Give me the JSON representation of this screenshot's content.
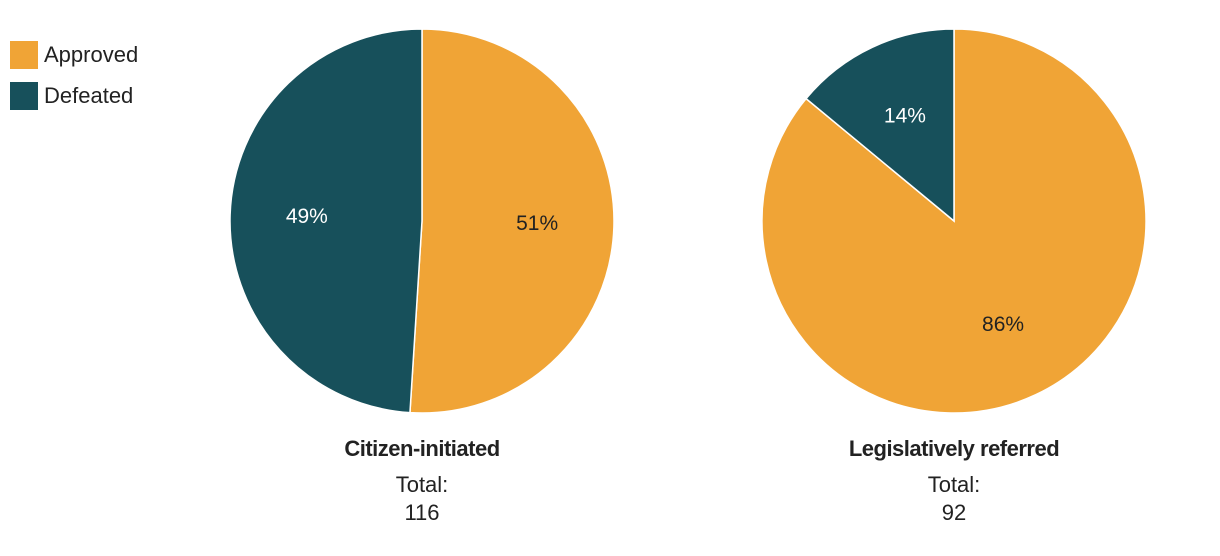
{
  "legend": {
    "items": [
      {
        "label": "Approved",
        "color": "#f0a436"
      },
      {
        "label": "Defeated",
        "color": "#17505b"
      }
    ]
  },
  "chart_data": [
    {
      "type": "pie",
      "title": "Citizen-initiated",
      "total_label": "Total:",
      "total_value": "116",
      "slices": [
        {
          "label": "Approved",
          "value": 51,
          "display": "51%",
          "color": "#f0a436",
          "text_color": "#222222"
        },
        {
          "label": "Defeated",
          "value": 49,
          "display": "49%",
          "color": "#17505b",
          "text_color": "#ffffff"
        }
      ]
    },
    {
      "type": "pie",
      "title": "Legislatively referred",
      "total_label": "Total:",
      "total_value": "92",
      "slices": [
        {
          "label": "Approved",
          "value": 86,
          "display": "86%",
          "color": "#f0a436",
          "text_color": "#222222"
        },
        {
          "label": "Defeated",
          "value": 14,
          "display": "14%",
          "color": "#17505b",
          "text_color": "#ffffff"
        }
      ]
    }
  ]
}
